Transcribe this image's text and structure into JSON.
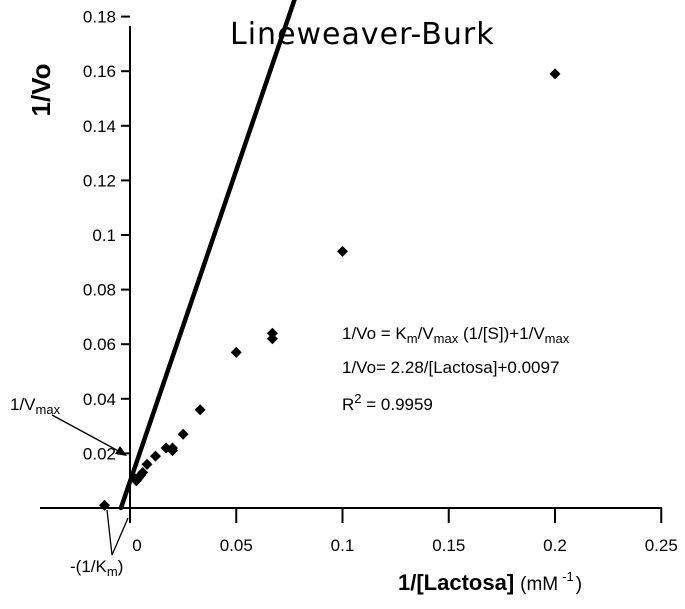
{
  "chart_data": {
    "type": "scatter",
    "title": "Lineweaver-Burk",
    "ylabel": "1/Vo",
    "xlabel_main": "1/[Lactosa]",
    "xlabel_unit_open": "(mM",
    "xlabel_unit_sup": "-1",
    "xlabel_unit_close": ")",
    "xlim": [
      -0.01,
      0.25
    ],
    "ylim": [
      0,
      0.18
    ],
    "x_ticks": [
      0,
      0.05,
      0.1,
      0.15,
      0.2,
      0.25
    ],
    "x_tick_labels": [
      "0",
      "0.05",
      "0.1",
      "0.15",
      "0.2",
      "0.25"
    ],
    "y_ticks": [
      0.02,
      0.04,
      0.06,
      0.08,
      0.1,
      0.12,
      0.14,
      0.16,
      0.18
    ],
    "y_tick_labels": [
      "0.02",
      "0.04",
      "0.06",
      "0.08",
      "0.1",
      "0.12",
      "0.14",
      "0.16",
      "0.18"
    ],
    "points": [
      {
        "x": 0.2,
        "y": 0.159
      },
      {
        "x": 0.1,
        "y": 0.094
      },
      {
        "x": 0.067,
        "y": 0.064
      },
      {
        "x": 0.067,
        "y": 0.062
      },
      {
        "x": 0.05,
        "y": 0.057
      },
      {
        "x": 0.033,
        "y": 0.036
      },
      {
        "x": 0.025,
        "y": 0.027
      },
      {
        "x": 0.02,
        "y": 0.022
      },
      {
        "x": 0.02,
        "y": 0.021
      },
      {
        "x": 0.017,
        "y": 0.022
      },
      {
        "x": 0.012,
        "y": 0.019
      },
      {
        "x": 0.008,
        "y": 0.016
      },
      {
        "x": 0.006,
        "y": 0.013
      },
      {
        "x": 0.005,
        "y": 0.012
      },
      {
        "x": 0.004,
        "y": 0.011
      },
      {
        "x": 0.003,
        "y": 0.01
      },
      {
        "x": 0.002,
        "y": 0.011
      },
      {
        "x": -0.012,
        "y": 0.001
      }
    ],
    "fit_line": {
      "slope": 2.28,
      "intercept": 0.0097,
      "x_start": -0.00425,
      "x_end": 0.2
    },
    "equation_lines": [
      {
        "text": "1/Vo = K",
        "sub1": "m",
        "mid": "/V",
        "sub2": "max",
        "tail": " (1/[S])+1/V",
        "sub3": "max"
      },
      {
        "text": "1/Vo= 2.28/[Lactosa]+0.0097"
      },
      {
        "r2_prefix": "R",
        "r2_sup": "2",
        "r2_value": " = 0.9959"
      }
    ],
    "annotations": {
      "vmax": {
        "prefix": "1/V",
        "sub": "max"
      },
      "km": {
        "prefix": "-(1/K",
        "sub": "m",
        "suffix": ")"
      }
    },
    "legend": "none",
    "grid": false
  }
}
